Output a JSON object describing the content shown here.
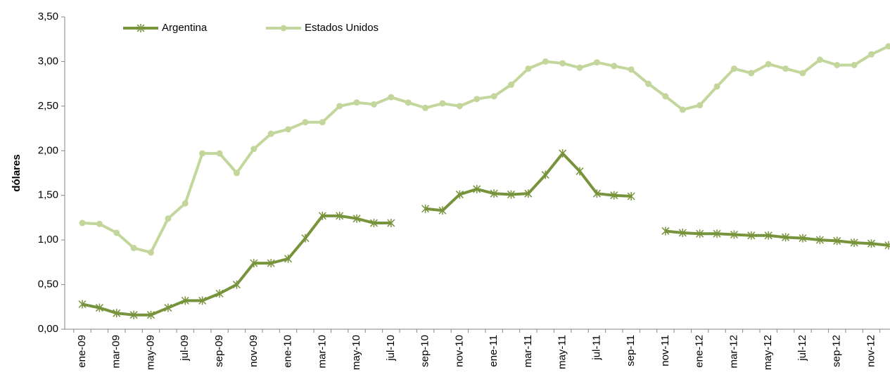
{
  "chart_data": {
    "type": "line",
    "y_label": "dólares",
    "categories": [
      "ene-09",
      null,
      "mar-09",
      null,
      "may-09",
      null,
      "jul-09",
      null,
      "sep-09",
      null,
      "nov-09",
      null,
      "ene-10",
      null,
      "mar-10",
      null,
      "may-10",
      null,
      "jul-10",
      null,
      "sep-10",
      null,
      "nov-10",
      null,
      "ene-11",
      null,
      "mar-11",
      null,
      "may-11",
      null,
      "jul-11",
      null,
      "sep-11",
      null,
      "nov-11",
      null,
      "ene-12",
      null,
      "mar-12",
      null,
      "may-12",
      null,
      "jul-12",
      null,
      "sep-12",
      null,
      "nov-12",
      null
    ],
    "series": [
      {
        "name": "Argentina",
        "color": "#77933c",
        "marker": "star",
        "values": [
          0.28,
          0.24,
          0.18,
          0.16,
          0.16,
          0.24,
          0.32,
          0.32,
          0.4,
          0.5,
          0.74,
          0.74,
          0.79,
          1.02,
          1.27,
          1.27,
          1.24,
          1.19,
          1.19,
          null,
          1.35,
          1.33,
          1.51,
          1.57,
          1.52,
          1.51,
          1.52,
          1.73,
          1.97,
          1.77,
          1.52,
          1.5,
          1.49,
          null,
          1.1,
          1.08,
          1.07,
          1.07,
          1.06,
          1.05,
          1.05,
          1.03,
          1.02,
          1.0,
          0.99,
          0.97,
          0.96,
          0.94
        ]
      },
      {
        "name": "Estados Unidos",
        "color": "#c3d69b",
        "marker": "circle",
        "values": [
          1.19,
          1.18,
          1.08,
          0.91,
          0.86,
          1.24,
          1.41,
          1.97,
          1.97,
          1.75,
          2.02,
          2.19,
          2.24,
          2.32,
          2.32,
          2.5,
          2.54,
          2.52,
          2.6,
          2.54,
          2.48,
          2.53,
          2.5,
          2.58,
          2.61,
          2.74,
          2.92,
          3.0,
          2.98,
          2.93,
          2.99,
          2.95,
          2.91,
          2.75,
          2.61,
          2.46,
          2.51,
          2.72,
          2.92,
          2.87,
          2.97,
          2.92,
          2.87,
          3.02,
          2.96,
          2.96,
          3.08,
          3.17
        ]
      }
    ],
    "ylim": [
      0,
      3.5
    ],
    "yticks": [
      {
        "value": 0,
        "label": "0,00"
      },
      {
        "value": 0.5,
        "label": "0,50"
      },
      {
        "value": 1,
        "label": "1,00"
      },
      {
        "value": 1.5,
        "label": "1,50"
      },
      {
        "value": 2,
        "label": "2,00"
      },
      {
        "value": 2.5,
        "label": "2,50"
      },
      {
        "value": 3,
        "label": "3,00"
      },
      {
        "value": 3.5,
        "label": "3,50"
      }
    ],
    "legend": "top-left",
    "grid": false
  }
}
